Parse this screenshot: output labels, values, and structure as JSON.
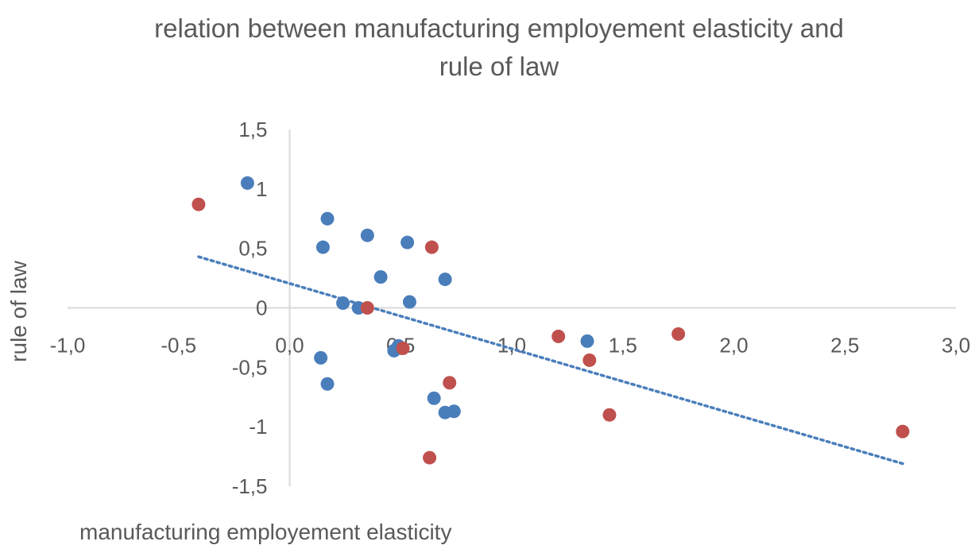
{
  "chart_data": {
    "type": "scatter",
    "title": [
      "relation between manufacturing employement elasticity and",
      "rule of law"
    ],
    "xlabel": "manufacturing employement elasticity",
    "ylabel": "rule of law",
    "xlim": [
      -1.0,
      3.0
    ],
    "ylim": [
      -1.5,
      1.5
    ],
    "x_ticks": [
      -1.0,
      -0.5,
      0.0,
      0.5,
      1.0,
      1.5,
      2.0,
      2.5,
      3.0
    ],
    "x_tick_labels": [
      "-1,0",
      "-0,5",
      "0,0",
      "0,5",
      "1,0",
      "1,5",
      "2,0",
      "2,5",
      "3,0"
    ],
    "y_ticks": [
      1.5,
      1.0,
      0.5,
      0.0,
      -0.5,
      -1.0,
      -1.5
    ],
    "y_tick_labels": [
      "1,5",
      "1",
      "0,5",
      "0",
      "-0,5",
      "-1",
      "-1,5"
    ],
    "grid": false,
    "legend": "none",
    "series": [
      {
        "color": "#4a7ebb",
        "points": [
          {
            "x": -0.19,
            "y": 1.05
          },
          {
            "x": 0.17,
            "y": 0.75
          },
          {
            "x": 0.15,
            "y": 0.51
          },
          {
            "x": 0.35,
            "y": 0.61
          },
          {
            "x": 0.53,
            "y": 0.55
          },
          {
            "x": 0.41,
            "y": 0.26
          },
          {
            "x": 0.7,
            "y": 0.24
          },
          {
            "x": 0.24,
            "y": 0.04
          },
          {
            "x": 0.31,
            "y": 0.0
          },
          {
            "x": 0.54,
            "y": 0.05
          },
          {
            "x": 0.49,
            "y": -0.32
          },
          {
            "x": 0.47,
            "y": -0.36
          },
          {
            "x": 1.34,
            "y": -0.28
          },
          {
            "x": 0.14,
            "y": -0.42
          },
          {
            "x": 0.17,
            "y": -0.64
          },
          {
            "x": 0.65,
            "y": -0.76
          },
          {
            "x": 0.7,
            "y": -0.88
          },
          {
            "x": 0.74,
            "y": -0.87
          }
        ]
      },
      {
        "color": "#c0504d",
        "points": [
          {
            "x": -0.41,
            "y": 0.87
          },
          {
            "x": 0.64,
            "y": 0.51
          },
          {
            "x": 0.35,
            "y": 0.0
          },
          {
            "x": 0.51,
            "y": -0.34
          },
          {
            "x": 1.21,
            "y": -0.24
          },
          {
            "x": 1.35,
            "y": -0.44
          },
          {
            "x": 1.75,
            "y": -0.22
          },
          {
            "x": 0.72,
            "y": -0.63
          },
          {
            "x": 1.44,
            "y": -0.9
          },
          {
            "x": 0.63,
            "y": -1.26
          },
          {
            "x": 2.76,
            "y": -1.04
          }
        ]
      }
    ],
    "trendline": {
      "type": "linear",
      "style": "dotted",
      "color": "#4a7ebb",
      "from": {
        "x": -0.41,
        "y": 0.43
      },
      "to": {
        "x": 2.76,
        "y": -1.31
      }
    }
  }
}
